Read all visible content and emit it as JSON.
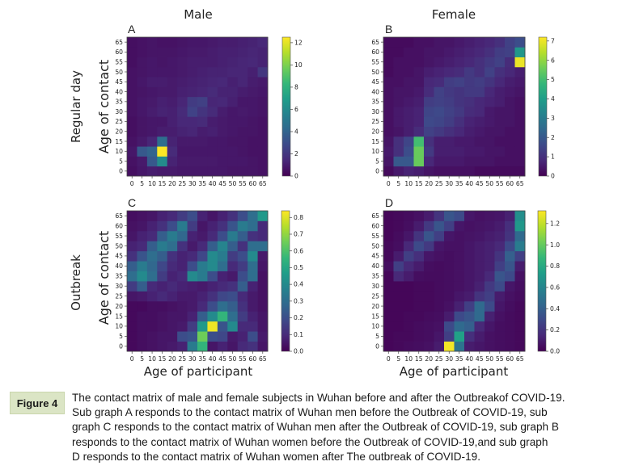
{
  "figure": {
    "column_titles": [
      "Male",
      "Female"
    ],
    "row_titles": [
      "Regular day",
      "Outbreak"
    ],
    "xlabel": "Age of participant",
    "ylabel": "Age of contact",
    "age_ticks": [
      "0",
      "5",
      "10",
      "15",
      "20",
      "25",
      "30",
      "35",
      "40",
      "45",
      "50",
      "55",
      "60",
      "65"
    ]
  },
  "caption": {
    "label": "Figure 4",
    "lines": [
      "The contact matrix of male and female subjects in Wuhan before and after the  Outbreakof COVID-19.",
      "Sub graph A responds to the contact matrix of Wuhan men before the  Outbreak of COVID-19, sub",
      "graph C responds to the contact matrix of Wuhan men after the Outbreak of COVID-19, sub graph B",
      "responds to the contact matrix of Wuhan women before the  Outbreak of COVID-19,and sub graph",
      "D responds to the contact matrix of Wuhan women after  The outbreak of COVID-19."
    ]
  },
  "colors": {
    "colormap": [
      "#440154",
      "#482878",
      "#3e4989",
      "#31688e",
      "#26828e",
      "#1f9e89",
      "#35b779",
      "#6ece58",
      "#b5de2b",
      "#fde725"
    ]
  },
  "chart_data": [
    {
      "type": "heatmap",
      "panel": "A",
      "title": "Male",
      "row_label": "Regular day",
      "xlabel": "",
      "ylabel": "Age of contact",
      "x_categories": [
        "0",
        "5",
        "10",
        "15",
        "20",
        "25",
        "30",
        "35",
        "40",
        "45",
        "50",
        "55",
        "60",
        "65"
      ],
      "y_categories": [
        "0",
        "5",
        "10",
        "15",
        "20",
        "25",
        "30",
        "35",
        "40",
        "45",
        "50",
        "55",
        "60",
        "65"
      ],
      "colorbar": {
        "min": 0,
        "max": 12.5,
        "ticks": [
          0,
          2,
          4,
          6,
          8,
          10,
          12
        ]
      },
      "values": [
        [
          0.5,
          0.8,
          1.0,
          0.9,
          0.9,
          0.8,
          0.8,
          0.8,
          0.8,
          0.8,
          0.7,
          0.7,
          0.7,
          0.6
        ],
        [
          0.6,
          0.9,
          3.5,
          6.0,
          1.2,
          0.9,
          0.9,
          0.9,
          0.9,
          0.8,
          0.8,
          0.8,
          0.7,
          0.6
        ],
        [
          0.8,
          3.5,
          4.0,
          12.5,
          1.5,
          0.8,
          0.8,
          0.8,
          0.8,
          0.8,
          0.8,
          0.7,
          0.6,
          0.6
        ],
        [
          0.6,
          0.9,
          1.3,
          4.5,
          1.2,
          0.9,
          0.9,
          0.9,
          0.8,
          0.8,
          0.7,
          0.7,
          0.6,
          0.6
        ],
        [
          0.5,
          0.7,
          0.8,
          1.0,
          1.0,
          1.2,
          1.3,
          1.0,
          1.1,
          0.9,
          0.8,
          0.7,
          0.7,
          0.6
        ],
        [
          0.5,
          0.7,
          0.8,
          0.8,
          1.1,
          1.4,
          1.4,
          1.5,
          1.0,
          0.9,
          0.8,
          0.8,
          0.7,
          0.6
        ],
        [
          0.6,
          0.8,
          1.0,
          1.2,
          1.1,
          1.5,
          2.5,
          1.9,
          1.5,
          1.0,
          0.8,
          0.9,
          0.8,
          0.7
        ],
        [
          0.6,
          0.8,
          0.9,
          1.1,
          1.0,
          1.3,
          2.2,
          2.4,
          1.3,
          1.4,
          1.1,
          0.8,
          0.8,
          0.7
        ],
        [
          0.6,
          0.7,
          0.8,
          0.9,
          0.9,
          1.1,
          1.2,
          1.3,
          1.5,
          1.2,
          1.2,
          1.0,
          0.9,
          0.8
        ],
        [
          0.6,
          0.8,
          1.0,
          1.0,
          0.9,
          1.0,
          1.1,
          1.2,
          1.3,
          1.4,
          1.1,
          1.3,
          1.0,
          0.9
        ],
        [
          0.6,
          0.7,
          0.8,
          0.8,
          0.8,
          0.9,
          1.0,
          1.1,
          1.2,
          1.2,
          1.3,
          1.3,
          1.1,
          2.0
        ],
        [
          0.5,
          0.7,
          0.8,
          0.7,
          0.8,
          0.9,
          1.0,
          1.0,
          1.0,
          1.1,
          1.2,
          1.3,
          1.4,
          1.2
        ],
        [
          0.5,
          0.6,
          0.7,
          0.7,
          0.7,
          0.8,
          0.9,
          0.9,
          1.0,
          1.1,
          1.1,
          1.2,
          1.3,
          1.2
        ],
        [
          0.5,
          0.6,
          0.7,
          0.6,
          0.6,
          0.7,
          0.8,
          0.8,
          0.9,
          1.0,
          1.0,
          1.1,
          1.2,
          1.4
        ]
      ]
    },
    {
      "type": "heatmap",
      "panel": "B",
      "title": "Female",
      "row_label": "Regular day",
      "xlabel": "",
      "ylabel": "",
      "x_categories": [
        "0",
        "5",
        "10",
        "15",
        "20",
        "25",
        "30",
        "35",
        "40",
        "45",
        "50",
        "55",
        "60",
        "65"
      ],
      "y_categories": [
        "0",
        "5",
        "10",
        "15",
        "20",
        "25",
        "30",
        "35",
        "40",
        "45",
        "50",
        "55",
        "60",
        "65"
      ],
      "colorbar": {
        "min": 0,
        "max": 7.2,
        "ticks": [
          0,
          1,
          2,
          3,
          4,
          5,
          6,
          7
        ]
      },
      "values": [
        [
          0.2,
          0.5,
          0.7,
          0.6,
          0.4,
          0.3,
          0.3,
          0.3,
          0.3,
          0.2,
          0.2,
          0.2,
          0.2,
          0.2
        ],
        [
          0.4,
          2.0,
          2.0,
          5.5,
          0.8,
          0.5,
          0.5,
          0.5,
          0.4,
          0.4,
          0.4,
          0.3,
          0.3,
          0.3
        ],
        [
          0.5,
          1.0,
          1.7,
          5.5,
          1.2,
          0.6,
          0.6,
          0.6,
          0.5,
          0.5,
          0.4,
          0.4,
          0.3,
          0.3
        ],
        [
          0.4,
          1.0,
          1.5,
          5.0,
          1.0,
          0.6,
          0.6,
          0.5,
          0.5,
          0.4,
          0.4,
          0.3,
          0.3,
          0.3
        ],
        [
          0.3,
          0.4,
          0.6,
          0.9,
          1.4,
          1.2,
          1.0,
          0.8,
          0.6,
          0.5,
          0.4,
          0.4,
          0.3,
          0.3
        ],
        [
          0.3,
          0.5,
          0.6,
          0.7,
          1.6,
          1.5,
          1.3,
          1.0,
          0.7,
          0.6,
          0.5,
          0.4,
          0.4,
          0.3
        ],
        [
          0.3,
          0.5,
          0.6,
          0.7,
          1.5,
          1.6,
          1.4,
          1.2,
          0.9,
          0.8,
          0.5,
          0.4,
          0.4,
          0.3
        ],
        [
          0.3,
          0.4,
          0.5,
          0.6,
          1.3,
          1.4,
          1.3,
          1.1,
          1.0,
          0.8,
          0.7,
          0.6,
          0.4,
          0.3
        ],
        [
          0.3,
          0.4,
          0.4,
          0.5,
          0.9,
          1.4,
          1.2,
          1.1,
          1.2,
          1.2,
          0.8,
          0.6,
          0.5,
          0.4
        ],
        [
          0.3,
          0.3,
          0.4,
          0.4,
          0.8,
          0.9,
          1.3,
          1.4,
          1.2,
          1.3,
          1.1,
          0.8,
          0.6,
          0.5
        ],
        [
          0.2,
          0.3,
          0.3,
          0.4,
          0.6,
          0.7,
          0.8,
          0.9,
          1.2,
          1.0,
          1.4,
          1.0,
          0.8,
          0.6
        ],
        [
          0.2,
          0.3,
          0.3,
          0.3,
          0.4,
          0.5,
          0.6,
          0.7,
          0.8,
          1.0,
          1.2,
          1.4,
          0.9,
          7.0
        ],
        [
          0.2,
          0.2,
          0.3,
          0.3,
          0.4,
          0.4,
          0.5,
          0.6,
          0.7,
          0.8,
          1.0,
          1.3,
          1.4,
          3.8
        ],
        [
          0.2,
          0.2,
          0.2,
          0.3,
          0.3,
          0.4,
          0.4,
          0.5,
          0.6,
          0.7,
          0.8,
          1.0,
          1.4,
          1.7
        ]
      ]
    },
    {
      "type": "heatmap",
      "panel": "C",
      "title": "",
      "row_label": "Outbreak",
      "xlabel": "Age of participant",
      "ylabel": "Age of contact",
      "x_categories": [
        "0",
        "5",
        "10",
        "15",
        "20",
        "25",
        "30",
        "35",
        "40",
        "45",
        "50",
        "55",
        "60",
        "65"
      ],
      "y_categories": [
        "0",
        "5",
        "10",
        "15",
        "20",
        "25",
        "30",
        "35",
        "40",
        "45",
        "50",
        "55",
        "60",
        "65"
      ],
      "colorbar": {
        "min": 0,
        "max": 0.84,
        "ticks": [
          0.0,
          0.1,
          0.2,
          0.3,
          0.4,
          0.5,
          0.6,
          0.7,
          0.8
        ]
      },
      "values": [
        [
          0.02,
          0.03,
          0.04,
          0.05,
          0.06,
          0.08,
          0.35,
          0.55,
          0.05,
          0.08,
          0.05,
          0.1,
          0.12,
          0.05
        ],
        [
          0.02,
          0.03,
          0.04,
          0.05,
          0.05,
          0.2,
          0.22,
          0.65,
          0.2,
          0.18,
          0.06,
          0.08,
          0.2,
          0.06
        ],
        [
          0.02,
          0.03,
          0.03,
          0.04,
          0.05,
          0.06,
          0.15,
          0.45,
          0.82,
          0.22,
          0.4,
          0.1,
          0.1,
          0.05
        ],
        [
          0.02,
          0.03,
          0.03,
          0.04,
          0.05,
          0.05,
          0.08,
          0.25,
          0.4,
          0.55,
          0.3,
          0.15,
          0.08,
          0.05
        ],
        [
          0.02,
          0.02,
          0.03,
          0.03,
          0.04,
          0.05,
          0.06,
          0.1,
          0.2,
          0.3,
          0.25,
          0.12,
          0.06,
          0.04
        ],
        [
          0.05,
          0.06,
          0.08,
          0.1,
          0.08,
          0.06,
          0.06,
          0.08,
          0.12,
          0.18,
          0.2,
          0.1,
          0.06,
          0.04
        ],
        [
          0.15,
          0.25,
          0.1,
          0.08,
          0.1,
          0.08,
          0.07,
          0.06,
          0.08,
          0.1,
          0.12,
          0.25,
          0.08,
          0.04
        ],
        [
          0.3,
          0.4,
          0.3,
          0.15,
          0.08,
          0.1,
          0.4,
          0.35,
          0.2,
          0.08,
          0.06,
          0.2,
          0.3,
          0.04
        ],
        [
          0.25,
          0.35,
          0.28,
          0.18,
          0.1,
          0.08,
          0.2,
          0.35,
          0.4,
          0.3,
          0.1,
          0.15,
          0.3,
          0.05
        ],
        [
          0.12,
          0.22,
          0.3,
          0.25,
          0.12,
          0.08,
          0.1,
          0.18,
          0.4,
          0.35,
          0.15,
          0.2,
          0.4,
          0.06
        ],
        [
          0.08,
          0.1,
          0.25,
          0.35,
          0.3,
          0.12,
          0.06,
          0.1,
          0.25,
          0.38,
          0.25,
          0.12,
          0.3,
          0.3
        ],
        [
          0.05,
          0.08,
          0.1,
          0.25,
          0.35,
          0.28,
          0.08,
          0.06,
          0.1,
          0.2,
          0.35,
          0.25,
          0.12,
          0.1
        ],
        [
          0.04,
          0.05,
          0.08,
          0.12,
          0.2,
          0.35,
          0.15,
          0.05,
          0.08,
          0.12,
          0.22,
          0.35,
          0.3,
          0.1
        ],
        [
          0.03,
          0.04,
          0.05,
          0.08,
          0.1,
          0.15,
          0.2,
          0.08,
          0.05,
          0.08,
          0.12,
          0.2,
          0.3,
          0.45
        ]
      ]
    },
    {
      "type": "heatmap",
      "panel": "D",
      "title": "",
      "row_label": "Outbreak",
      "xlabel": "Age of participant",
      "ylabel": "",
      "x_categories": [
        "0",
        "5",
        "10",
        "15",
        "20",
        "25",
        "30",
        "35",
        "40",
        "45",
        "50",
        "55",
        "60",
        "65"
      ],
      "y_categories": [
        "0",
        "5",
        "10",
        "15",
        "20",
        "25",
        "30",
        "35",
        "40",
        "45",
        "50",
        "55",
        "60",
        "65"
      ],
      "colorbar": {
        "min": 0,
        "max": 1.32,
        "ticks": [
          0.0,
          0.2,
          0.4,
          0.6,
          0.8,
          1.0,
          1.2
        ]
      },
      "values": [
        [
          0.02,
          0.03,
          0.04,
          0.05,
          0.06,
          0.1,
          1.3,
          0.5,
          0.1,
          0.08,
          0.06,
          0.05,
          0.04,
          0.03
        ],
        [
          0.02,
          0.03,
          0.03,
          0.04,
          0.05,
          0.08,
          0.25,
          0.75,
          0.18,
          0.1,
          0.06,
          0.05,
          0.04,
          0.03
        ],
        [
          0.02,
          0.02,
          0.03,
          0.04,
          0.05,
          0.06,
          0.3,
          0.45,
          0.4,
          0.15,
          0.08,
          0.05,
          0.04,
          0.03
        ],
        [
          0.02,
          0.02,
          0.03,
          0.03,
          0.04,
          0.05,
          0.1,
          0.3,
          0.35,
          0.45,
          0.12,
          0.06,
          0.04,
          0.03
        ],
        [
          0.02,
          0.02,
          0.02,
          0.03,
          0.03,
          0.04,
          0.06,
          0.12,
          0.25,
          0.45,
          0.3,
          0.08,
          0.05,
          0.03
        ],
        [
          0.02,
          0.02,
          0.02,
          0.03,
          0.03,
          0.04,
          0.05,
          0.08,
          0.1,
          0.2,
          0.25,
          0.1,
          0.06,
          0.04
        ],
        [
          0.02,
          0.02,
          0.02,
          0.03,
          0.03,
          0.04,
          0.05,
          0.06,
          0.08,
          0.12,
          0.22,
          0.3,
          0.08,
          0.05
        ],
        [
          0.02,
          0.15,
          0.1,
          0.05,
          0.04,
          0.04,
          0.05,
          0.06,
          0.08,
          0.1,
          0.15,
          0.35,
          0.3,
          0.06
        ],
        [
          0.05,
          0.25,
          0.15,
          0.1,
          0.05,
          0.04,
          0.05,
          0.06,
          0.08,
          0.1,
          0.12,
          0.25,
          0.35,
          0.1
        ],
        [
          0.03,
          0.1,
          0.25,
          0.18,
          0.08,
          0.06,
          0.05,
          0.06,
          0.08,
          0.1,
          0.12,
          0.2,
          0.4,
          0.25
        ],
        [
          0.03,
          0.05,
          0.15,
          0.3,
          0.22,
          0.08,
          0.06,
          0.06,
          0.08,
          0.1,
          0.12,
          0.15,
          0.3,
          0.55
        ],
        [
          0.02,
          0.04,
          0.08,
          0.2,
          0.35,
          0.25,
          0.08,
          0.06,
          0.07,
          0.08,
          0.1,
          0.12,
          0.2,
          0.45
        ],
        [
          0.02,
          0.03,
          0.05,
          0.1,
          0.22,
          0.35,
          0.25,
          0.08,
          0.06,
          0.07,
          0.08,
          0.1,
          0.18,
          0.7
        ],
        [
          0.02,
          0.03,
          0.04,
          0.06,
          0.1,
          0.2,
          0.35,
          0.3,
          0.08,
          0.06,
          0.07,
          0.08,
          0.12,
          0.65
        ]
      ]
    }
  ]
}
